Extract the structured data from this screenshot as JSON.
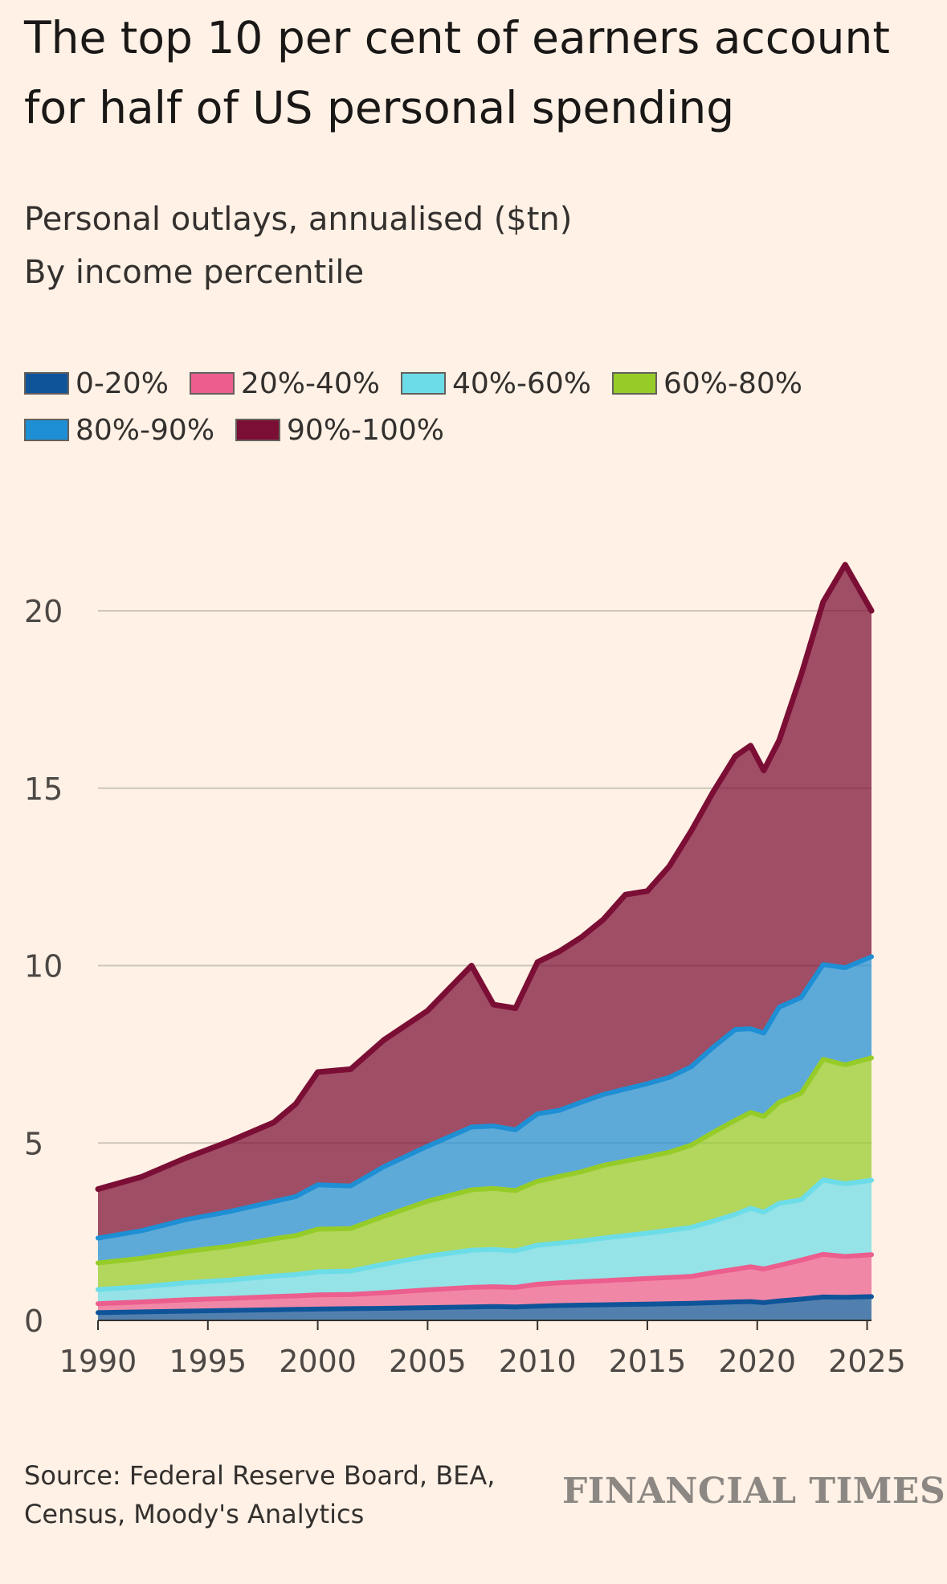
{
  "chart_data": {
    "type": "area",
    "stacked": true,
    "title": "The top 10 per cent of earners account for half of US personal spending",
    "subtitle": "Personal outlays, annualised ($tn)",
    "subtitle2": "By income percentile",
    "ylim": [
      0,
      20
    ],
    "yticks": [
      0,
      5,
      10,
      15,
      20
    ],
    "xticks": [
      1990,
      1995,
      2000,
      2005,
      2010,
      2015,
      2020,
      2025
    ],
    "xlim": [
      1990,
      2025.2
    ],
    "grid": true,
    "legend_position": "top",
    "x": [
      1990,
      1992,
      1994,
      1996,
      1998,
      1999,
      2000,
      2001.5,
      2003,
      2005,
      2007,
      2008,
      2009,
      2010,
      2011,
      2012,
      2013,
      2014,
      2015,
      2016,
      2017,
      2018,
      2019,
      2019.7,
      2020.3,
      2021,
      2022,
      2023,
      2024,
      2025.2
    ],
    "series": [
      {
        "name": "0-20%",
        "color": "#0F5499",
        "values": [
          0.22,
          0.24,
          0.26,
          0.28,
          0.3,
          0.31,
          0.32,
          0.33,
          0.34,
          0.36,
          0.38,
          0.39,
          0.38,
          0.4,
          0.42,
          0.43,
          0.44,
          0.45,
          0.46,
          0.47,
          0.48,
          0.5,
          0.52,
          0.53,
          0.5,
          0.55,
          0.6,
          0.66,
          0.65,
          0.67
        ]
      },
      {
        "name": "20%-40%",
        "color": "#EB5E8D",
        "values": [
          0.25,
          0.28,
          0.32,
          0.34,
          0.37,
          0.38,
          0.4,
          0.4,
          0.44,
          0.5,
          0.55,
          0.56,
          0.55,
          0.62,
          0.64,
          0.66,
          0.68,
          0.7,
          0.72,
          0.74,
          0.76,
          0.85,
          0.92,
          0.98,
          0.95,
          1.0,
          1.1,
          1.2,
          1.15,
          1.18
        ]
      },
      {
        "name": "40%-60%",
        "color": "#6CDDE8",
        "values": [
          0.4,
          0.43,
          0.48,
          0.52,
          0.58,
          0.6,
          0.65,
          0.66,
          0.8,
          0.95,
          1.05,
          1.05,
          1.03,
          1.1,
          1.12,
          1.15,
          1.2,
          1.24,
          1.28,
          1.33,
          1.38,
          1.45,
          1.55,
          1.65,
          1.6,
          1.75,
          1.7,
          2.1,
          2.05,
          2.1
        ]
      },
      {
        "name": "60%-80%",
        "color": "#96CC28",
        "values": [
          0.75,
          0.8,
          0.88,
          0.95,
          1.05,
          1.1,
          1.2,
          1.2,
          1.35,
          1.55,
          1.7,
          1.72,
          1.7,
          1.8,
          1.88,
          1.95,
          2.05,
          2.1,
          2.15,
          2.2,
          2.32,
          2.5,
          2.65,
          2.7,
          2.7,
          2.85,
          3.0,
          3.4,
          3.35,
          3.45
        ]
      },
      {
        "name": "80%-90%",
        "color": "#1E8FD4",
        "values": [
          0.7,
          0.78,
          0.9,
          0.98,
          1.05,
          1.1,
          1.25,
          1.2,
          1.4,
          1.55,
          1.77,
          1.76,
          1.71,
          1.9,
          1.86,
          1.96,
          2.0,
          2.03,
          2.06,
          2.11,
          2.21,
          2.4,
          2.56,
          2.36,
          2.35,
          2.68,
          2.7,
          2.67,
          2.74,
          2.85
        ]
      },
      {
        "name": "90%-100%",
        "color": "#7B0E35",
        "values": [
          1.38,
          1.52,
          1.74,
          1.98,
          2.23,
          2.61,
          3.18,
          3.29,
          3.57,
          3.82,
          4.55,
          3.42,
          3.43,
          4.28,
          4.48,
          4.65,
          4.93,
          5.48,
          5.43,
          5.95,
          6.65,
          7.2,
          7.7,
          7.98,
          7.4,
          7.52,
          9.1,
          10.22,
          11.36,
          9.75
        ]
      }
    ],
    "source": "Source: Federal Reserve Board, BEA, Census, Moody's Analytics",
    "brand": "FINANCIAL TIMES"
  }
}
